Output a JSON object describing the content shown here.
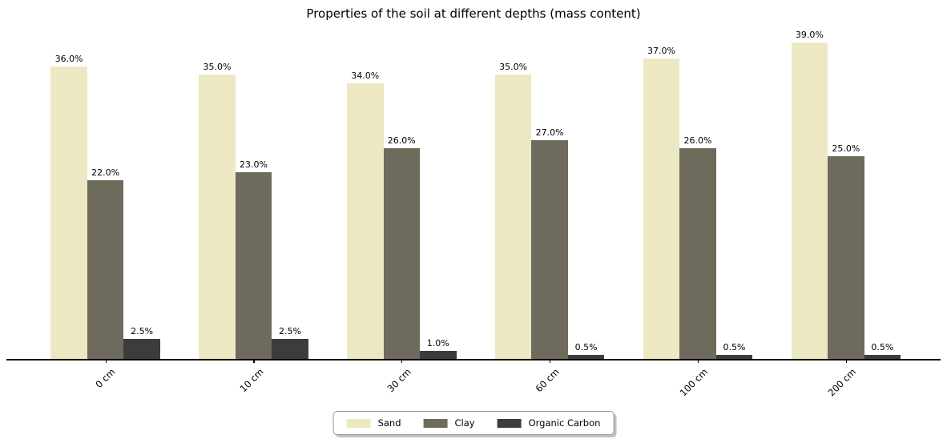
{
  "title": "Properties of the soil at different depths (mass content)",
  "colors": {
    "sand": "#ECE9C2",
    "clay": "#6E6A5C",
    "organic_carbon": "#3C3C3C",
    "axis": "#000000",
    "background": "#ffffff"
  },
  "legend": {
    "items": [
      {
        "label": "Sand",
        "color": "#ECE9C2"
      },
      {
        "label": "Clay",
        "color": "#6E6A5C"
      },
      {
        "label": "Organic Carbon",
        "color": "#3C3C3C"
      }
    ],
    "position": "bottom-center"
  },
  "chart_data": {
    "type": "bar",
    "title": "Properties of the soil at different depths (mass content)",
    "categories": [
      "0 cm",
      "10 cm",
      "30 cm",
      "60 cm",
      "100 cm",
      "200 cm"
    ],
    "series": [
      {
        "name": "Sand",
        "color": "#ECE9C2",
        "values": [
          36.0,
          35.0,
          34.0,
          35.0,
          37.0,
          39.0
        ]
      },
      {
        "name": "Clay",
        "color": "#6E6A5C",
        "values": [
          22.0,
          23.0,
          26.0,
          27.0,
          26.0,
          25.0
        ]
      },
      {
        "name": "Organic Carbon",
        "color": "#3C3C3C",
        "values": [
          2.5,
          2.5,
          1.0,
          0.5,
          0.5,
          0.5
        ]
      }
    ],
    "bar_value_labels": [
      [
        "36.0%",
        "35.0%",
        "34.0%",
        "35.0%",
        "37.0%",
        "39.0%"
      ],
      [
        "22.0%",
        "23.0%",
        "26.0%",
        "27.0%",
        "26.0%",
        "25.0%"
      ],
      [
        "2.5%",
        "2.5%",
        "1.0%",
        "0.5%",
        "0.5%",
        "0.5%"
      ]
    ],
    "xlabel": "",
    "ylabel": "",
    "ylim": [
      0,
      41
    ],
    "grid": false,
    "y_axis_visible": false,
    "legend_position": "bottom-center"
  }
}
